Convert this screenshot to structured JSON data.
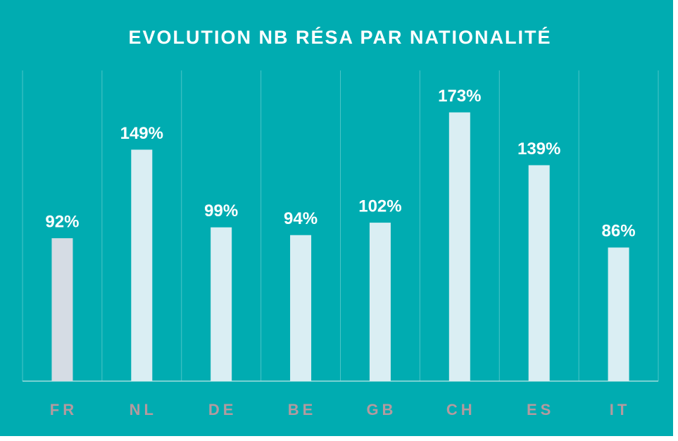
{
  "chart_data": {
    "type": "bar",
    "title": "EVOLUTION  NB RÉSA PAR NATIONALITÉ",
    "categories": [
      "FR",
      "NL",
      "DE",
      "BE",
      "GB",
      "CH",
      "ES",
      "IT"
    ],
    "values": [
      92,
      149,
      99,
      94,
      102,
      173,
      139,
      86
    ],
    "value_labels": [
      "92%",
      "149%",
      "99%",
      "94%",
      "102%",
      "173%",
      "139%",
      "86%"
    ],
    "colors": [
      "#d5dce4",
      "#daeef3",
      "#daeef3",
      "#daeef3",
      "#daeef3",
      "#daeef3",
      "#daeef3",
      "#daeef3"
    ],
    "ylim": [
      0,
      200
    ],
    "grid": true
  }
}
